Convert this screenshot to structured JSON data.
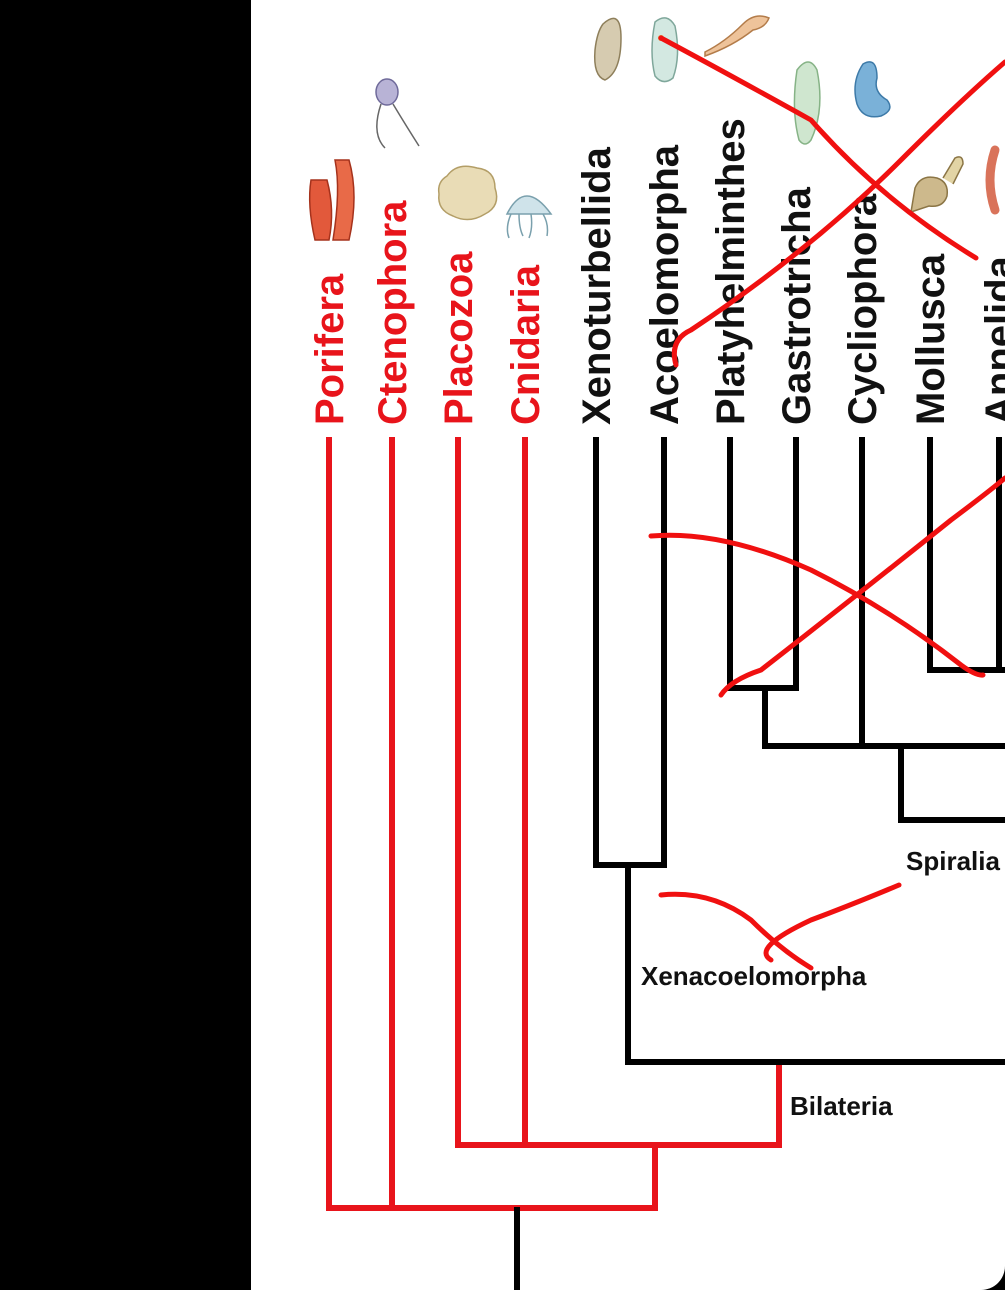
{
  "colors": {
    "highlight": "#e8141b",
    "branch": "#000000",
    "annotation": "#f01010",
    "background": "#ffffff",
    "side_panel": "#000000"
  },
  "taxa": [
    {
      "label": "Porifera",
      "color": "red",
      "icon": "sponge-icon"
    },
    {
      "label": "Ctenophora",
      "color": "red",
      "icon": "comb-jelly-icon"
    },
    {
      "label": "Placozoa",
      "color": "red",
      "icon": "placozoan-icon"
    },
    {
      "label": "Cnidaria",
      "color": "red",
      "icon": "jellyfish-icon"
    },
    {
      "label": "Xenoturbellida",
      "color": "black",
      "icon": "xenoturbella-icon"
    },
    {
      "label": "Acoelomorpha",
      "color": "black",
      "icon": "acoel-worm-icon"
    },
    {
      "label": "Platyhelminthes",
      "color": "black",
      "icon": "flatworm-icon"
    },
    {
      "label": "Gastrotricha",
      "color": "black",
      "icon": "gastrotrich-icon"
    },
    {
      "label": "Cycliophora",
      "color": "black",
      "icon": "cycliophoran-icon"
    },
    {
      "label": "Mollusca",
      "color": "black",
      "icon": "snail-icon"
    },
    {
      "label": "Annelida",
      "color": "black",
      "icon": "annelid-worm-icon"
    }
  ],
  "clades": {
    "spiralia": "Spiralia",
    "xenacoelomorpha": "Xenacoelomorpha",
    "bilateria": "Bilateria"
  }
}
